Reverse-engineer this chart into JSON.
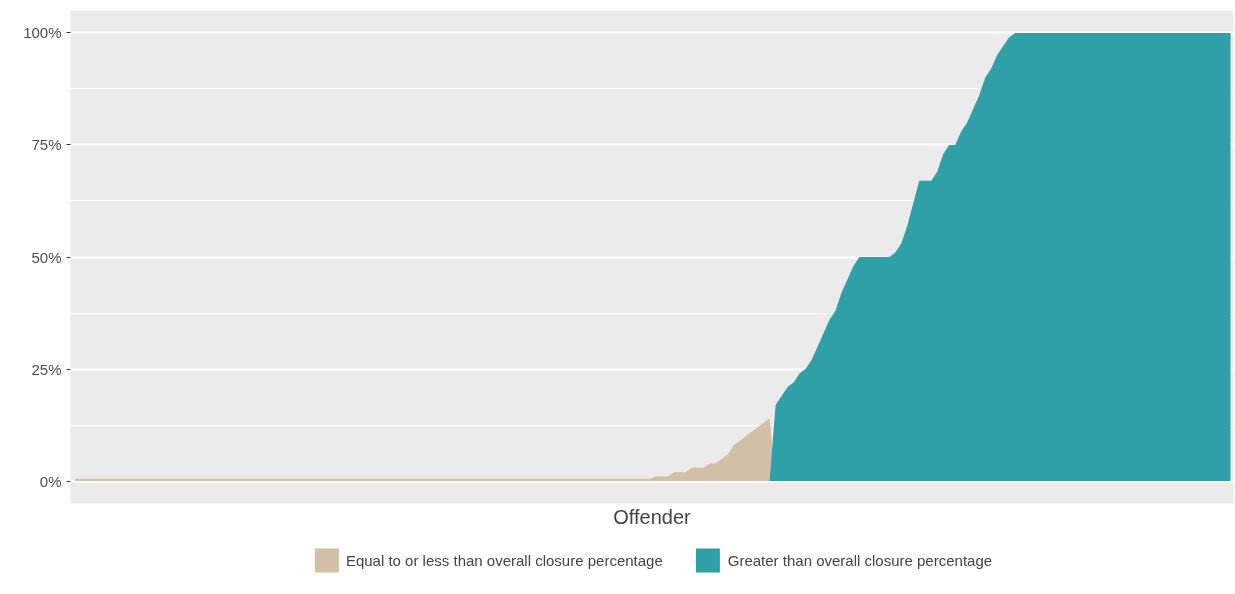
{
  "chart_data": {
    "type": "area",
    "xlabel": "Offender",
    "categories": [
      null,
      null,
      null,
      null,
      null,
      null,
      null,
      null,
      null,
      null,
      null,
      null,
      null,
      null,
      null,
      null,
      null,
      null,
      null,
      null,
      null,
      null,
      null,
      null,
      null,
      null,
      null,
      null,
      null,
      null,
      null,
      null,
      null,
      null,
      null,
      null,
      null,
      null,
      null,
      null,
      null,
      null,
      null,
      null,
      null,
      null,
      null,
      null,
      null,
      null,
      null,
      null,
      null,
      null,
      null,
      null,
      null,
      null,
      null,
      null,
      null,
      null,
      null,
      null,
      null,
      null,
      null,
      null,
      null,
      null,
      null,
      null,
      null,
      null,
      null,
      null,
      null,
      null,
      null,
      null,
      null,
      null,
      null,
      null,
      null,
      null,
      null,
      null,
      null,
      null,
      null,
      null,
      null,
      null,
      null,
      null,
      null,
      null,
      null,
      null,
      null,
      null,
      null,
      null,
      null,
      null,
      null,
      null,
      null,
      null,
      null,
      null,
      null,
      null,
      null,
      null,
      null,
      null,
      null,
      null,
      null,
      null,
      null,
      null,
      null,
      null,
      null,
      null,
      null,
      null,
      null,
      null,
      null,
      null,
      null,
      null,
      null,
      null,
      null,
      null,
      null,
      null,
      null,
      null,
      null,
      null,
      null,
      null,
      null,
      null,
      null,
      null,
      null,
      null,
      null,
      null,
      null,
      null,
      null,
      null,
      null,
      null,
      null,
      null,
      null,
      null,
      null,
      null,
      null,
      null,
      null,
      null,
      null,
      null,
      null,
      null,
      null,
      null,
      null,
      null,
      null,
      null,
      null,
      null,
      null,
      null,
      null,
      null,
      null,
      null,
      null,
      null,
      null,
      null
    ],
    "series": [
      {
        "name": "Equal to or less than overall closure percentage",
        "color": "#d2bfa8",
        "values": [
          0.5,
          0.5,
          0.5,
          0.5,
          0.5,
          0.5,
          0.5,
          0.5,
          0.5,
          0.5,
          0.5,
          0.5,
          0.5,
          0.5,
          0.5,
          0.5,
          0.5,
          0.5,
          0.5,
          0.5,
          0.5,
          0.5,
          0.5,
          0.5,
          0.5,
          0.5,
          0.5,
          0.5,
          0.5,
          0.5,
          0.5,
          0.5,
          0.5,
          0.5,
          0.5,
          0.5,
          0.5,
          0.5,
          0.5,
          0.5,
          0.5,
          0.5,
          0.5,
          0.5,
          0.5,
          0.5,
          0.5,
          0.5,
          0.5,
          0.5,
          0.5,
          0.5,
          0.5,
          0.5,
          0.5,
          0.5,
          0.5,
          0.5,
          0.5,
          0.5,
          0.5,
          0.5,
          0.5,
          0.5,
          0.5,
          0.5,
          0.5,
          0.5,
          0.5,
          0.5,
          0.5,
          0.5,
          0.5,
          0.5,
          0.5,
          0.5,
          0.5,
          0.5,
          0.5,
          0.5,
          0.5,
          0.5,
          0.5,
          0.5,
          0.5,
          0.5,
          0.5,
          0.5,
          0.5,
          0.5,
          0.5,
          0.5,
          0.5,
          0.5,
          0.5,
          0.5,
          0.5,
          1,
          1,
          1,
          2,
          2,
          2,
          3,
          3,
          3,
          4,
          4,
          5,
          6,
          8,
          9,
          10,
          11,
          12,
          13,
          14,
          0,
          0,
          0,
          0,
          0,
          0,
          0,
          0,
          0,
          0,
          0,
          0,
          0,
          0,
          0,
          0,
          0,
          0,
          0,
          0,
          0,
          0,
          0,
          0,
          0,
          0,
          0,
          0,
          0,
          0,
          0,
          0,
          0,
          0,
          0,
          0,
          0,
          0,
          0,
          0,
          0,
          0,
          0,
          0,
          0,
          0,
          0,
          0,
          0,
          0,
          0,
          0,
          0,
          0,
          0,
          0,
          0,
          0,
          0,
          0,
          0,
          0,
          0,
          0,
          0,
          0,
          0,
          0,
          0,
          0,
          0,
          0,
          0,
          0,
          0,
          0,
          0
        ]
      },
      {
        "name": "Greater than overall closure percentage",
        "color": "#2fa0a8",
        "values": [
          0,
          0,
          0,
          0,
          0,
          0,
          0,
          0,
          0,
          0,
          0,
          0,
          0,
          0,
          0,
          0,
          0,
          0,
          0,
          0,
          0,
          0,
          0,
          0,
          0,
          0,
          0,
          0,
          0,
          0,
          0,
          0,
          0,
          0,
          0,
          0,
          0,
          0,
          0,
          0,
          0,
          0,
          0,
          0,
          0,
          0,
          0,
          0,
          0,
          0,
          0,
          0,
          0,
          0,
          0,
          0,
          0,
          0,
          0,
          0,
          0,
          0,
          0,
          0,
          0,
          0,
          0,
          0,
          0,
          0,
          0,
          0,
          0,
          0,
          0,
          0,
          0,
          0,
          0,
          0,
          0,
          0,
          0,
          0,
          0,
          0,
          0,
          0,
          0,
          0,
          0,
          0,
          0,
          0,
          0,
          0,
          0,
          0,
          0,
          0,
          0,
          0,
          0,
          0,
          0,
          0,
          0,
          0,
          0,
          0,
          0,
          0,
          0,
          0,
          0,
          0,
          0,
          17,
          19,
          21,
          22,
          24,
          25,
          27,
          30,
          33,
          36,
          38,
          42,
          45,
          48,
          50,
          50,
          50,
          50,
          50,
          50,
          51,
          53,
          57,
          62,
          67,
          67,
          67,
          69,
          73,
          75,
          75,
          78,
          80,
          83,
          86,
          90,
          92,
          95,
          97,
          99,
          100,
          100,
          100,
          100,
          100,
          100,
          100,
          100,
          100,
          100,
          100,
          100,
          100,
          100,
          100,
          100,
          100,
          100,
          100,
          100,
          100,
          100,
          100,
          100,
          100,
          100,
          100,
          100,
          100,
          100,
          100,
          100,
          100,
          100,
          100,
          100,
          100
        ]
      }
    ],
    "ylim": [
      -5,
      105
    ],
    "yticks": [
      {
        "value": 0,
        "label": "0%"
      },
      {
        "value": 25,
        "label": "25%"
      },
      {
        "value": 50,
        "label": "50%"
      },
      {
        "value": 75,
        "label": "75%"
      },
      {
        "value": 100,
        "label": "100%"
      }
    ],
    "grid": "y",
    "legend": "bottom",
    "tick_labels": "y"
  }
}
